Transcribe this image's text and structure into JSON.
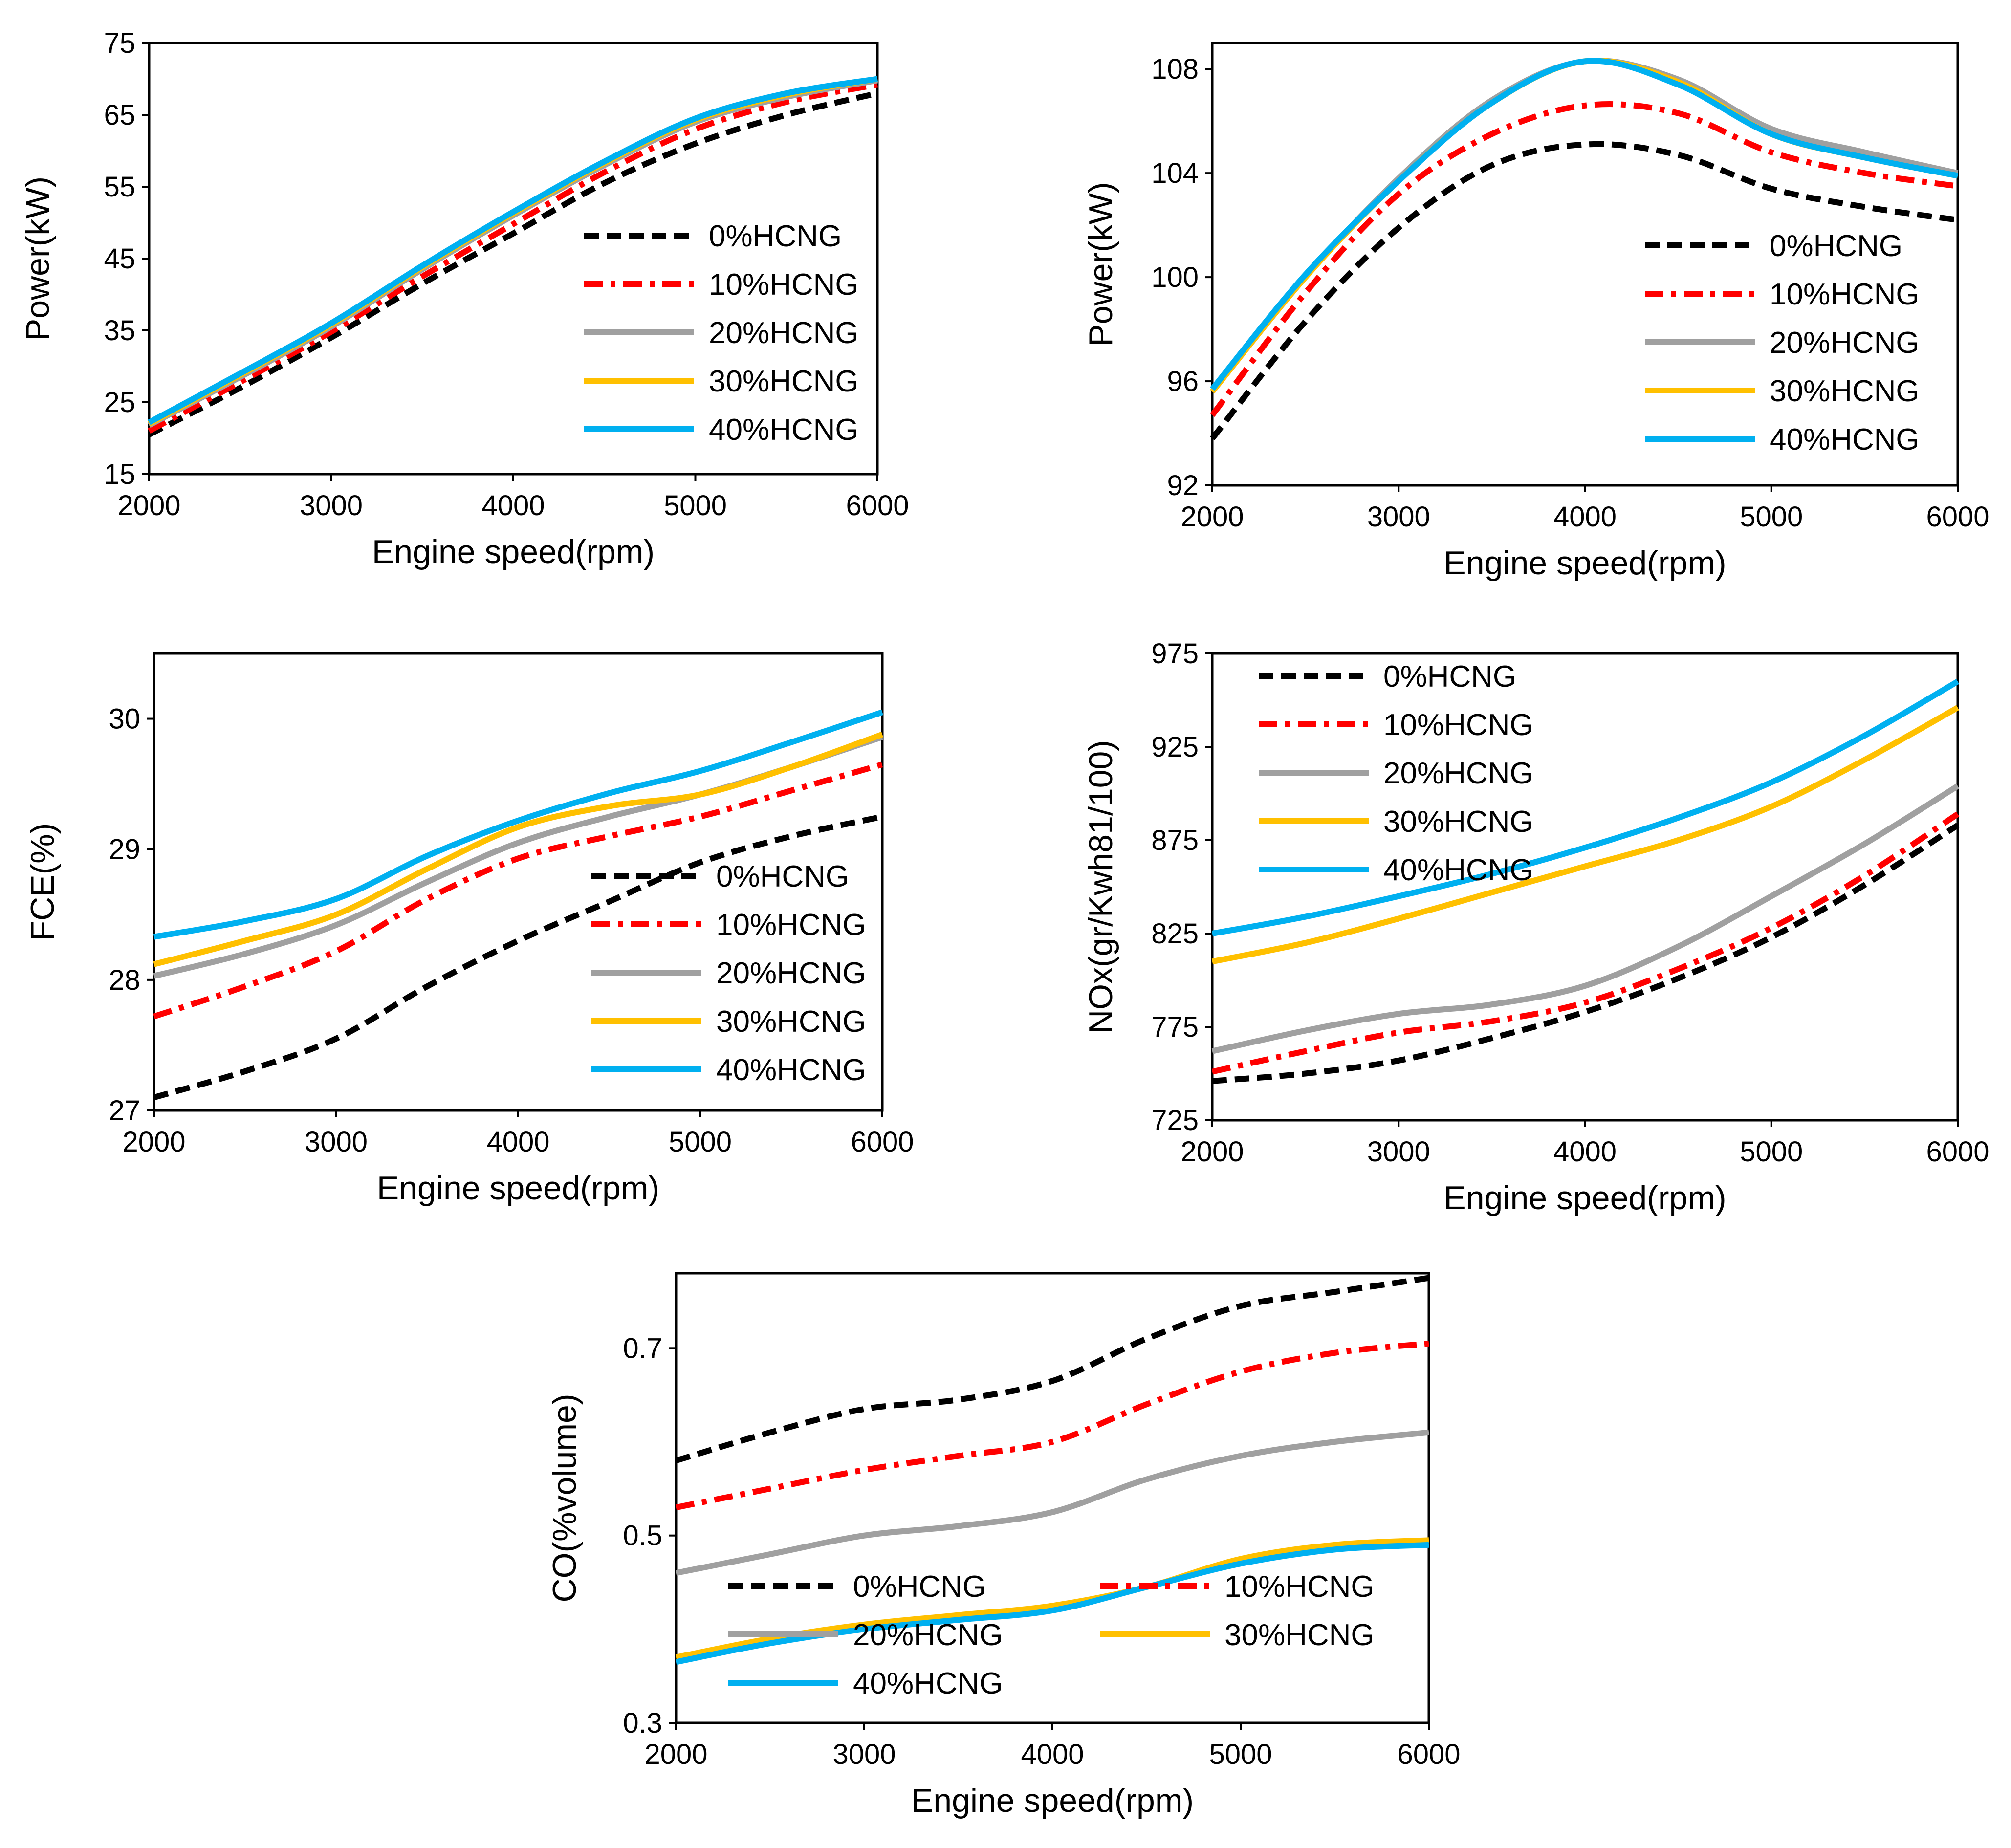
{
  "figure": {
    "legend_colors": {
      "0%HCNG": "#000000",
      "10%HCNG": "#ff0000",
      "20%HCNG": "#a0a0a0",
      "30%HCNG": "#ffc000",
      "40%HCNG": "#00b0f0"
    },
    "line_styles": {
      "0%HCNG": "dashed",
      "10%HCNG": "dash-dot",
      "20%HCNG": "solid",
      "30%HCNG": "solid",
      "40%HCNG": "solid"
    }
  },
  "chart_data": [
    {
      "type": "line",
      "xlabel": "Engine speed(rpm)",
      "ylabel": "Power(kW)",
      "xlim": [
        2000,
        6000
      ],
      "ylim": [
        15,
        75
      ],
      "xticks": [
        2000,
        3000,
        4000,
        5000,
        6000
      ],
      "yticks": [
        15,
        25,
        35,
        45,
        55,
        65,
        75
      ],
      "legend_position": "middle-right",
      "legend_columns": 1,
      "x": [
        2000,
        2500,
        3000,
        3500,
        4000,
        4500,
        5000,
        5500,
        6000
      ],
      "series": [
        {
          "name": "0%HCNG",
          "values": [
            20.5,
            27.0,
            34.0,
            41.5,
            48.5,
            55.5,
            61.0,
            65.0,
            68.0
          ]
        },
        {
          "name": "10%HCNG",
          "values": [
            21.0,
            27.8,
            34.8,
            42.5,
            49.8,
            57.0,
            63.0,
            66.8,
            69.2
          ]
        },
        {
          "name": "20%HCNG",
          "values": [
            21.8,
            28.5,
            35.5,
            43.5,
            51.0,
            58.0,
            64.0,
            67.5,
            69.8
          ]
        },
        {
          "name": "30%HCNG",
          "values": [
            22.0,
            28.8,
            35.8,
            43.8,
            51.3,
            58.3,
            64.3,
            67.8,
            70.0
          ]
        },
        {
          "name": "40%HCNG",
          "values": [
            22.2,
            29.0,
            36.0,
            44.0,
            51.5,
            58.5,
            64.5,
            68.0,
            70.0
          ]
        }
      ]
    },
    {
      "type": "line",
      "xlabel": "Engine speed(rpm)",
      "ylabel": "Power(kW)",
      "xlim": [
        2000,
        6000
      ],
      "ylim": [
        92,
        109
      ],
      "xticks": [
        2000,
        3000,
        4000,
        5000,
        6000
      ],
      "yticks": [
        92,
        96,
        100,
        104,
        108
      ],
      "legend_position": "lower-right",
      "legend_columns": 1,
      "x": [
        2000,
        2500,
        3000,
        3500,
        4000,
        4500,
        5000,
        5500,
        6000
      ],
      "series": [
        {
          "name": "0%HCNG",
          "values": [
            93.8,
            98.3,
            101.9,
            104.3,
            105.1,
            104.7,
            103.4,
            102.7,
            102.2
          ]
        },
        {
          "name": "10%HCNG",
          "values": [
            94.7,
            99.4,
            103.2,
            105.5,
            106.6,
            106.3,
            104.8,
            104.0,
            103.5
          ]
        },
        {
          "name": "20%HCNG",
          "values": [
            95.6,
            100.0,
            103.8,
            106.8,
            108.3,
            107.6,
            105.7,
            104.8,
            104.0
          ]
        },
        {
          "name": "30%HCNG",
          "values": [
            95.6,
            100.0,
            103.7,
            106.7,
            108.3,
            107.5,
            105.5,
            104.6,
            103.9
          ]
        },
        {
          "name": "40%HCNG",
          "values": [
            95.7,
            100.1,
            103.7,
            106.7,
            108.3,
            107.4,
            105.5,
            104.6,
            103.9
          ]
        }
      ]
    },
    {
      "type": "line",
      "xlabel": "Engine speed(rpm)",
      "ylabel": "FCE(%)",
      "xlim": [
        2000,
        6000
      ],
      "ylim": [
        27,
        30.5
      ],
      "xticks": [
        2000,
        3000,
        4000,
        5000,
        6000
      ],
      "yticks": [
        27,
        28,
        29,
        30
      ],
      "legend_position": "lower-right",
      "legend_columns": 1,
      "x": [
        2000,
        2500,
        3000,
        3500,
        4000,
        4500,
        5000,
        5500,
        6000
      ],
      "series": [
        {
          "name": "0%HCNG",
          "values": [
            27.1,
            27.3,
            27.55,
            27.95,
            28.3,
            28.6,
            28.9,
            29.1,
            29.25
          ]
        },
        {
          "name": "10%HCNG",
          "values": [
            27.72,
            27.95,
            28.22,
            28.62,
            28.93,
            29.1,
            29.25,
            29.45,
            29.65
          ]
        },
        {
          "name": "20%HCNG",
          "values": [
            28.03,
            28.2,
            28.42,
            28.75,
            29.05,
            29.25,
            29.42,
            29.63,
            29.86
          ]
        },
        {
          "name": "30%HCNG",
          "values": [
            28.12,
            28.3,
            28.5,
            28.85,
            29.17,
            29.33,
            29.42,
            29.63,
            29.88
          ]
        },
        {
          "name": "40%HCNG",
          "values": [
            28.33,
            28.45,
            28.62,
            28.95,
            29.22,
            29.43,
            29.6,
            29.82,
            30.05
          ]
        }
      ]
    },
    {
      "type": "line",
      "xlabel": "Engine speed(rpm)",
      "ylabel": "NOx(gr/Kwh81/100)",
      "xlim": [
        2000,
        6000
      ],
      "ylim": [
        725,
        975
      ],
      "xticks": [
        2000,
        3000,
        4000,
        5000,
        6000
      ],
      "yticks": [
        725,
        775,
        825,
        875,
        925,
        975
      ],
      "legend_position": "top-left",
      "legend_columns": 1,
      "x": [
        2000,
        2500,
        3000,
        3500,
        4000,
        4500,
        5000,
        5500,
        6000
      ],
      "series": [
        {
          "name": "0%HCNG",
          "values": [
            746,
            750,
            757,
            769,
            783,
            801,
            823,
            851,
            883
          ]
        },
        {
          "name": "10%HCNG",
          "values": [
            751,
            762,
            772,
            778,
            788,
            806,
            828,
            856,
            889
          ]
        },
        {
          "name": "20%HCNG",
          "values": [
            762,
            773,
            782,
            787,
            797,
            818,
            845,
            873,
            904
          ]
        },
        {
          "name": "30%HCNG",
          "values": [
            810,
            820,
            833,
            847,
            861,
            875,
            893,
            918,
            946
          ]
        },
        {
          "name": "40%HCNG",
          "values": [
            825,
            834,
            845,
            857,
            871,
            887,
            906,
            931,
            960
          ]
        }
      ]
    },
    {
      "type": "line",
      "xlabel": "Engine speed(rpm)",
      "ylabel": "CO(%volume)",
      "xlim": [
        2000,
        6000
      ],
      "ylim": [
        0.3,
        0.78
      ],
      "xticks": [
        2000,
        3000,
        4000,
        5000,
        6000
      ],
      "yticks": [
        0.3,
        0.5,
        0.7
      ],
      "legend_position": "bottom",
      "legend_columns": 2,
      "x": [
        2000,
        2500,
        3000,
        3500,
        4000,
        4500,
        5000,
        5500,
        6000
      ],
      "series": [
        {
          "name": "0%HCNG",
          "values": [
            0.58,
            0.61,
            0.635,
            0.645,
            0.665,
            0.71,
            0.745,
            0.76,
            0.775
          ]
        },
        {
          "name": "10%HCNG",
          "values": [
            0.53,
            0.55,
            0.57,
            0.585,
            0.6,
            0.64,
            0.675,
            0.695,
            0.705
          ]
        },
        {
          "name": "20%HCNG",
          "values": [
            0.46,
            0.48,
            0.5,
            0.51,
            0.525,
            0.56,
            0.585,
            0.6,
            0.61
          ]
        },
        {
          "name": "30%HCNG",
          "values": [
            0.37,
            0.39,
            0.405,
            0.415,
            0.425,
            0.445,
            0.475,
            0.49,
            0.495
          ]
        },
        {
          "name": "40%HCNG",
          "values": [
            0.365,
            0.385,
            0.4,
            0.41,
            0.42,
            0.445,
            0.47,
            0.485,
            0.49
          ]
        }
      ]
    }
  ]
}
